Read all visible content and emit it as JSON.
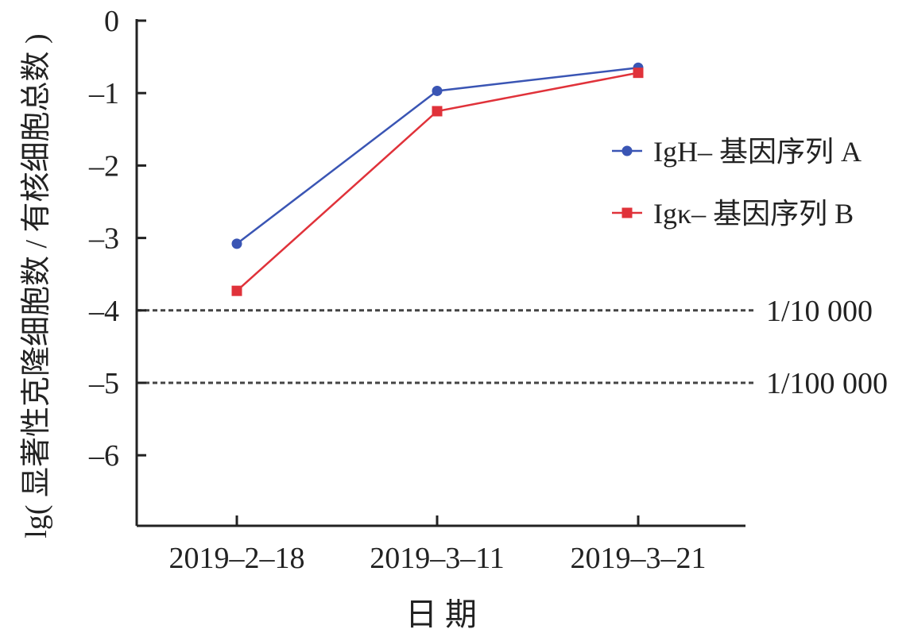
{
  "chart_data": {
    "type": "line",
    "title": "",
    "xlabel": "日 期",
    "ylabel": "lg( 显著性克隆细胞数 / 有核细胞总数 )",
    "categories": [
      "2019–2–18",
      "2019–3–11",
      "2019–3–21"
    ],
    "ylim": [
      -7,
      0
    ],
    "yticks": [
      0,
      -1,
      -2,
      -3,
      -4,
      -5,
      -6
    ],
    "ytick_labels": [
      "0",
      "–1",
      "–2",
      "–3",
      "–4",
      "–5",
      "–6"
    ],
    "grid": false,
    "legend_placement": "right",
    "series": [
      {
        "name": "IgH– 基因序列 A",
        "values": [
          -3.08,
          -0.97,
          -0.65
        ],
        "color": "#3a55b4",
        "marker": "circle"
      },
      {
        "name": "Igκ– 基因序列 B",
        "values": [
          -3.73,
          -1.25,
          -0.72
        ],
        "color": "#e0323a",
        "marker": "square"
      }
    ],
    "reference_lines": [
      {
        "y": -4,
        "label": "1/10 000"
      },
      {
        "y": -5,
        "label": "1/100 000"
      }
    ]
  }
}
